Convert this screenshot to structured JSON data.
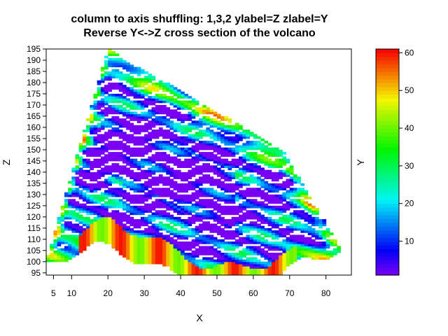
{
  "chart_data": {
    "type": "heatmap",
    "title": "column to axis shuffling: 1,3,2 ylabel=Z zlabel=Y",
    "subtitle": "Reverse Y<->Z cross section of the volcano",
    "xlabel": "X",
    "ylabel": "Z",
    "zlabel": "Y",
    "xlim": [
      3,
      87
    ],
    "ylim": [
      94,
      195
    ],
    "zlim": [
      1,
      61
    ],
    "x_ticks": [
      5,
      10,
      20,
      30,
      40,
      50,
      60,
      70,
      80
    ],
    "y_ticks": [
      95,
      100,
      105,
      110,
      115,
      120,
      125,
      130,
      135,
      140,
      145,
      150,
      155,
      160,
      165,
      170,
      175,
      180,
      185,
      190,
      195
    ],
    "colorbar_ticks": [
      10,
      20,
      30,
      40,
      50,
      60
    ],
    "colormap": "rainbow (purple-blue-cyan-green-yellow-orange-red)",
    "grid": false,
    "legend": "colorbar-right",
    "peak": {
      "x": 20,
      "z": 195
    },
    "shoulder": {
      "x": 52,
      "z": 165
    },
    "base_range": {
      "x": [
        3,
        87
      ],
      "z": [
        95,
        110
      ]
    }
  }
}
